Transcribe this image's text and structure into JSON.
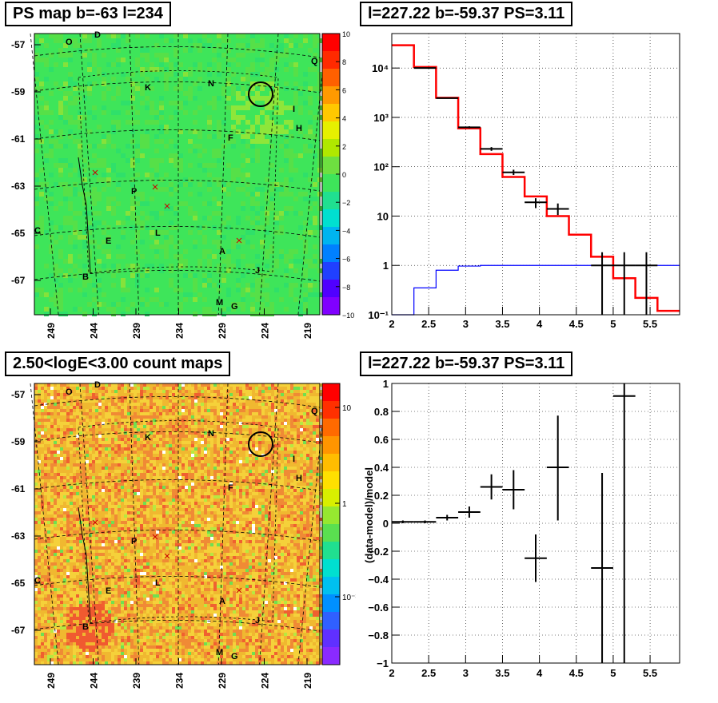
{
  "panels": {
    "map_ps": {
      "title": "PS map b=-63 l=234"
    },
    "spectrum": {
      "title": "l=227.22 b=-59.37 PS=3.11"
    },
    "map_counts": {
      "title": "2.50<logE<3.00 count maps"
    },
    "residual": {
      "title": "l=227.22 b=-59.37 PS=3.11"
    }
  },
  "chart_data": [
    {
      "type": "heatmap",
      "id": "ps_map",
      "title": "PS map b=-63 l=234",
      "xlabel": "",
      "ylabel": "",
      "xticks": [
        "249",
        "244",
        "239",
        "234",
        "229",
        "224",
        "219"
      ],
      "yticks": [
        "-57",
        "-59",
        "-61",
        "-63",
        "-65",
        "-67"
      ],
      "colorbar": {
        "min": -10,
        "max": 10,
        "ticks": [
          "10",
          "8",
          "6",
          "4",
          "2",
          "0",
          "−2",
          "−4",
          "−6",
          "−8",
          "−10"
        ]
      },
      "sources": [
        "O",
        "D",
        "K",
        "N",
        "Q",
        "I",
        "H",
        "F",
        "P",
        "C",
        "E",
        "L",
        "A",
        "J",
        "B",
        "M",
        "G"
      ],
      "colors": {
        "background": "#3ee55a",
        "highlight": "#7fe63a"
      }
    },
    {
      "type": "line",
      "id": "spectrum",
      "title": "l=227.22 b=-59.37 PS=3.11",
      "xlabel": "",
      "ylabel": "",
      "xlim": [
        2,
        5.9
      ],
      "ylim": [
        0.1,
        50000
      ],
      "yscale": "log",
      "xticks": [
        "2",
        "2.5",
        "3",
        "3.5",
        "4",
        "4.5",
        "5",
        "5.5"
      ],
      "yticks": [
        "10⁻¹",
        "1",
        "10",
        "10²",
        "10³",
        "10⁴"
      ],
      "grid": true,
      "series": [
        {
          "color": "#ff0000",
          "kind": "step",
          "edges": [
            2.0,
            2.3,
            2.6,
            2.9,
            3.2,
            3.5,
            3.8,
            4.1,
            4.4,
            4.7,
            5.0,
            5.3,
            5.6,
            5.9
          ],
          "values": [
            29000,
            10500,
            2500,
            600,
            180,
            62,
            25,
            10,
            4.2,
            1.5,
            0.55,
            0.22,
            0.12
          ]
        },
        {
          "color": "#0000ff",
          "kind": "step",
          "edges": [
            2.0,
            2.3,
            2.6,
            2.9,
            3.2,
            3.5,
            3.8,
            4.1,
            4.4,
            4.7,
            5.0,
            5.3,
            5.6,
            5.9
          ],
          "values": [
            0.1,
            0.35,
            0.8,
            0.97,
            1.0,
            1.0,
            1.0,
            1.0,
            1.0,
            1.0,
            1.0,
            1.0,
            1.0
          ]
        },
        {
          "color": "#000000",
          "kind": "points",
          "points": [
            {
              "x": 2.45,
              "y": 10000,
              "xerr": 0.15,
              "lo": 10000,
              "hi": 10000
            },
            {
              "x": 2.75,
              "y": 2450,
              "xerr": 0.15,
              "lo": 2400,
              "hi": 2500
            },
            {
              "x": 3.05,
              "y": 630,
              "xerr": 0.15,
              "lo": 600,
              "hi": 660
            },
            {
              "x": 3.35,
              "y": 230,
              "xerr": 0.15,
              "lo": 210,
              "hi": 250
            },
            {
              "x": 3.65,
              "y": 77,
              "xerr": 0.15,
              "lo": 68,
              "hi": 87
            },
            {
              "x": 3.95,
              "y": 19,
              "xerr": 0.15,
              "lo": 14.5,
              "hi": 23
            },
            {
              "x": 4.25,
              "y": 14,
              "xerr": 0.15,
              "lo": 10.5,
              "hi": 18
            },
            {
              "x": 4.85,
              "y": 1.0,
              "xerr": 0.15,
              "lo": 0.1,
              "hi": 1.85
            },
            {
              "x": 5.15,
              "y": 1.0,
              "xerr": 0.15,
              "lo": 0.1,
              "hi": 1.85
            },
            {
              "x": 5.45,
              "y": 1.0,
              "xerr": 0.15,
              "lo": 0.1,
              "hi": 1.85
            }
          ]
        }
      ]
    },
    {
      "type": "heatmap",
      "id": "count_map",
      "title": "2.50<logE<3.00 count maps",
      "xlabel": "",
      "ylabel": "",
      "xticks": [
        "249",
        "244",
        "239",
        "234",
        "229",
        "224",
        "219"
      ],
      "yticks": [
        "-57",
        "-59",
        "-61",
        "-63",
        "-65",
        "-67"
      ],
      "colorbar": {
        "scale": "log",
        "ticks": [
          "10",
          "1",
          "10⁻¹"
        ]
      },
      "sources": [
        "O",
        "D",
        "K",
        "N",
        "Q",
        "I",
        "H",
        "F",
        "P",
        "C",
        "E",
        "L",
        "A",
        "J",
        "B",
        "M",
        "G"
      ],
      "colors": {
        "background": "#f0b830",
        "hot": "#f06a30"
      }
    },
    {
      "type": "scatter",
      "id": "residual",
      "title": "l=227.22 b=-59.37 PS=3.11",
      "xlabel": "",
      "ylabel": "(data-model)/model",
      "xlim": [
        2,
        5.9
      ],
      "ylim": [
        -1,
        1
      ],
      "xticks": [
        "2",
        "2.5",
        "3",
        "3.5",
        "4",
        "4.5",
        "5",
        "5.5"
      ],
      "yticks": [
        "1",
        "0.8",
        "0.6",
        "0.4",
        "0.2",
        "0",
        "−0.2",
        "−0.4",
        "−0.6",
        "−0.8",
        "−1"
      ],
      "grid": true,
      "points": [
        {
          "x": 2.15,
          "y": 0.01,
          "xerr": 0.15,
          "lo": 0.0,
          "hi": 0.02
        },
        {
          "x": 2.45,
          "y": 0.01,
          "xerr": 0.15,
          "lo": 0.0,
          "hi": 0.02
        },
        {
          "x": 2.75,
          "y": 0.04,
          "xerr": 0.15,
          "lo": 0.02,
          "hi": 0.06
        },
        {
          "x": 3.05,
          "y": 0.08,
          "xerr": 0.15,
          "lo": 0.04,
          "hi": 0.12
        },
        {
          "x": 3.35,
          "y": 0.26,
          "xerr": 0.15,
          "lo": 0.17,
          "hi": 0.35
        },
        {
          "x": 3.65,
          "y": 0.24,
          "xerr": 0.15,
          "lo": 0.1,
          "hi": 0.38
        },
        {
          "x": 3.95,
          "y": -0.25,
          "xerr": 0.15,
          "lo": -0.42,
          "hi": -0.08
        },
        {
          "x": 4.25,
          "y": 0.4,
          "xerr": 0.15,
          "lo": 0.02,
          "hi": 0.77
        },
        {
          "x": 4.85,
          "y": -0.32,
          "xerr": 0.15,
          "lo": -1.0,
          "hi": 0.36
        },
        {
          "x": 5.15,
          "y": 0.91,
          "xerr": 0.15,
          "lo": -1.0,
          "hi": 1.0
        }
      ]
    }
  ]
}
